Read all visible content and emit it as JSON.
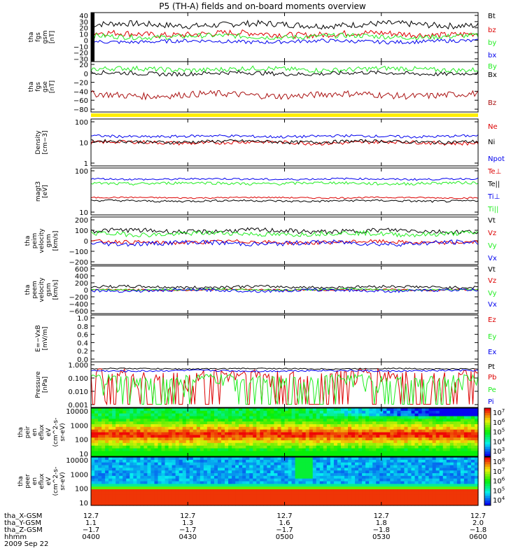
{
  "title": "P5 (TH-A) fields and on-board moments overview",
  "colors": {
    "black": "#000000",
    "red": "#dd0000",
    "green": "#22ee22",
    "blue": "#0000ee",
    "darkred": "#aa1111",
    "yellow": "#ffee00"
  },
  "chart_data": [
    {
      "type": "line",
      "ylabel": [
        "tha",
        "fgs",
        "gsm",
        "[nT]"
      ],
      "yticks": [
        "40",
        "30",
        "20",
        "10",
        "0",
        "−10",
        "−20",
        "−30"
      ],
      "ylim": [
        -30,
        40
      ],
      "series": [
        {
          "name": "Bt",
          "color": "black",
          "base": 25,
          "amp": 5
        },
        {
          "name": "bz",
          "color": "red",
          "base": 10,
          "amp": 5
        },
        {
          "name": "by",
          "color": "green",
          "base": 6,
          "amp": 4
        },
        {
          "name": "bx",
          "color": "blue",
          "base": -2,
          "amp": 3
        }
      ]
    },
    {
      "type": "line",
      "ylabel": [
        "tha",
        "fgs",
        "gse",
        "[nT]"
      ],
      "yticks": [
        "20",
        "0",
        "−20",
        "−40",
        "−60",
        "−80"
      ],
      "ylim": [
        -90,
        20
      ],
      "series": [
        {
          "name": "By",
          "color": "green",
          "base": 8,
          "amp": 6
        },
        {
          "name": "Bx",
          "color": "black",
          "base": -2,
          "amp": 5
        },
        {
          "name": "Bz",
          "color": "darkred",
          "base": -55,
          "amp": 8
        }
      ]
    },
    {
      "type": "line",
      "ylabel": [
        "Density",
        "[cm−3]"
      ],
      "yticks": [
        "100",
        "10",
        "1"
      ],
      "log": true,
      "ylim": [
        1,
        100
      ],
      "series": [
        {
          "name": "Ne",
          "color": "red",
          "base": 10,
          "amp": 2
        },
        {
          "name": "Ni",
          "color": "black",
          "base": 11,
          "amp": 2
        },
        {
          "name": "Npot",
          "color": "blue",
          "base": 20,
          "amp": 3
        }
      ]
    },
    {
      "type": "line",
      "ylabel": [
        "magt3",
        "[eV]"
      ],
      "yticks": [
        "100",
        "10"
      ],
      "log": true,
      "ylim": [
        10,
        1000
      ],
      "series": [
        {
          "name": "Te⊥",
          "color": "red",
          "base": 50,
          "amp": 4
        },
        {
          "name": "Te||",
          "color": "black",
          "base": 35,
          "amp": 4
        },
        {
          "name": "Ti⊥",
          "color": "blue",
          "base": 400,
          "amp": 40
        },
        {
          "name": "Ti||",
          "color": "green",
          "base": 250,
          "amp": 40
        }
      ]
    },
    {
      "type": "line",
      "ylabel": [
        "tha",
        "peim",
        "velocity",
        "gsm",
        "[km/s]"
      ],
      "yticks": [
        "200",
        "100",
        "0",
        "−100",
        "−200"
      ],
      "ylim": [
        -250,
        200
      ],
      "series": [
        {
          "name": "Vt",
          "color": "black",
          "base": 80,
          "amp": 25
        },
        {
          "name": "Vz",
          "color": "red",
          "base": -40,
          "amp": 20
        },
        {
          "name": "Vy",
          "color": "green",
          "base": 50,
          "amp": 25
        },
        {
          "name": "Vx",
          "color": "blue",
          "base": -50,
          "amp": 25
        }
      ]
    },
    {
      "type": "line",
      "ylabel": [
        "tha",
        "peem",
        "velocity",
        "gsm",
        "[km/s]"
      ],
      "yticks": [
        "600",
        "400",
        "200",
        "0",
        "−200",
        "−400",
        "−600"
      ],
      "ylim": [
        -600,
        600
      ],
      "series": [
        {
          "name": "Vt",
          "color": "black",
          "base": 80,
          "amp": 40
        },
        {
          "name": "Vz",
          "color": "red",
          "base": 0,
          "amp": 25
        },
        {
          "name": "Vy",
          "color": "green",
          "base": 5,
          "amp": 25
        },
        {
          "name": "Vx",
          "color": "blue",
          "base": -20,
          "amp": 40
        }
      ]
    },
    {
      "type": "line",
      "ylabel": [
        "E=−VxB",
        "[mV/m]"
      ],
      "yticks": [
        "1.0",
        "0.8",
        "0.6",
        "0.4",
        "0.2",
        "0.0"
      ],
      "ylim": [
        0,
        1
      ],
      "series": [
        {
          "name": "Ez",
          "color": "red",
          "base": null,
          "amp": 0
        },
        {
          "name": "Ey",
          "color": "green",
          "base": null,
          "amp": 0
        },
        {
          "name": "Ex",
          "color": "blue",
          "base": null,
          "amp": 0
        }
      ]
    },
    {
      "type": "line",
      "ylabel": [
        "Pressure",
        "[nPa]"
      ],
      "yticks": [
        "1.000",
        "0.100",
        "0.010",
        "0.001"
      ],
      "log": true,
      "ylim": [
        0.001,
        1
      ],
      "series": [
        {
          "name": "Pt",
          "color": "black",
          "base": 0.5,
          "amp": 0.05
        },
        {
          "name": "Pb",
          "color": "red",
          "base": 0.1,
          "amp": 0.3
        },
        {
          "name": "Pe",
          "color": "green",
          "base": 0.06,
          "amp": 0.1
        },
        {
          "name": "Pi",
          "color": "blue",
          "base": 0.35,
          "amp": 0.05
        }
      ]
    },
    {
      "type": "heatmap",
      "ylabel": [
        "tha",
        "peir",
        "en",
        "eflux",
        "eV",
        "(cm^2-s-",
        "sr-eV)"
      ],
      "yticks": [
        "10000",
        "1000",
        "100",
        "10"
      ],
      "colorbar": [
        "10^7",
        "10^6",
        "10^5",
        "10^4",
        "10^3"
      ]
    },
    {
      "type": "heatmap",
      "ylabel": [
        "tha",
        "peer",
        "en",
        "eflux",
        "eV",
        "(cm^2-s-",
        "sr-eV)"
      ],
      "yticks": [
        "10000",
        "1000",
        "100",
        "10"
      ],
      "colorbar": [
        "10^8",
        "10^7",
        "10^6",
        "10^5",
        "10^4"
      ]
    }
  ],
  "xaxis": {
    "row_labels": [
      "tha_X-GSM",
      "tha_Y-GSM",
      "tha_Z-GSM",
      "hhmm",
      "2009 Sep 22"
    ],
    "ticks": [
      {
        "x": "12.7",
        "y": "1.1",
        "z": "−1.7",
        "t": "0400"
      },
      {
        "x": "12.7",
        "y": "1.3",
        "z": "−1.7",
        "t": "0430"
      },
      {
        "x": "12.7",
        "y": "1.6",
        "z": "−1.7",
        "t": "0500"
      },
      {
        "x": "12.7",
        "y": "1.8",
        "z": "−1.8",
        "t": "0530"
      },
      {
        "x": "12.7",
        "y": "2.0",
        "z": "−1.8",
        "t": "0600"
      }
    ]
  }
}
